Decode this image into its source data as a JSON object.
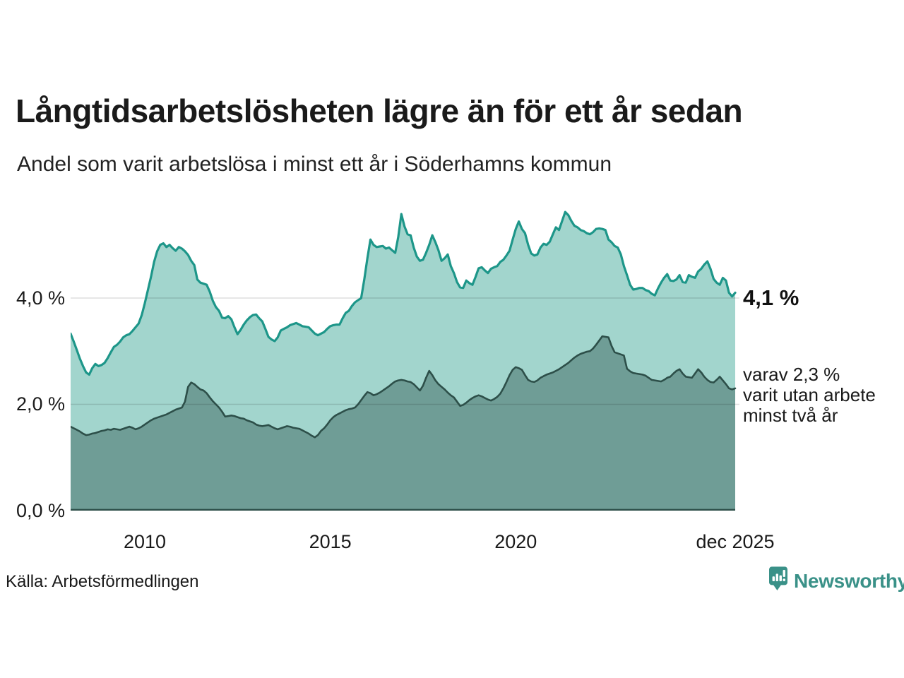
{
  "header": {
    "title": "Långtidsarbetslösheten lägre än för ett år sedan",
    "subtitle": "Andel som varit arbetslösa i minst ett år i Söderhamns kommun"
  },
  "annotations": {
    "series1_end_label": "4,1 %",
    "series2_end_label": "varav 2,3 %\nvarit utan arbete\nminst två år"
  },
  "footer": {
    "source": "Källa: Arbetsförmedlingen",
    "logo_text": "Newsworthy"
  },
  "colors": {
    "series1_line": "#1d9689",
    "series1_fill": "#a2d5cd",
    "series2_line": "#2d4f49",
    "series2_fill": "#6f9d96",
    "gridline": "rgba(0,0,0,0.13)",
    "axis_line": "#2d4f49",
    "logo_teal": "#3a9188",
    "text": "#1a1a1a"
  },
  "chart_data": {
    "type": "area",
    "title": "Långtidsarbetslösheten lägre än för ett år sedan",
    "subtitle": "Andel som varit arbetslösa i minst ett år i Söderhamns kommun",
    "unit": "%",
    "x_start_year": 2008,
    "x_months_per_point": 1,
    "x_end_label_month": "dec 2025",
    "grid": "horizontal",
    "legend_position": "right-annotations",
    "y_axis": {
      "min": 0,
      "max": 5.887,
      "ticks": [
        {
          "label": "4,0 %",
          "value": 4.0
        },
        {
          "label": "2,0 %",
          "value": 2.0
        },
        {
          "label": "0,0 %",
          "value": 0.0
        }
      ]
    },
    "x_axis": {
      "ticks": [
        {
          "label": "2010",
          "year": 2010.0
        },
        {
          "label": "2015",
          "year": 2015.0
        },
        {
          "label": "2020",
          "year": 2020.0
        },
        {
          "label": "dec 2025",
          "year": 2025.917
        }
      ]
    },
    "series": [
      {
        "name": "Andel som varit arbetslösa i minst ett år",
        "end_value": 4.1,
        "end_label": "4,1 %",
        "values": [
          3.33,
          3.18,
          3.02,
          2.86,
          2.72,
          2.6,
          2.56,
          2.68,
          2.76,
          2.72,
          2.74,
          2.78,
          2.87,
          2.98,
          3.08,
          3.12,
          3.18,
          3.26,
          3.3,
          3.32,
          3.38,
          3.45,
          3.52,
          3.68,
          3.9,
          4.15,
          4.4,
          4.68,
          4.88,
          5.0,
          5.03,
          4.96,
          5.0,
          4.94,
          4.89,
          4.96,
          4.93,
          4.88,
          4.81,
          4.7,
          4.62,
          4.35,
          4.29,
          4.27,
          4.25,
          4.12,
          3.95,
          3.83,
          3.76,
          3.63,
          3.62,
          3.66,
          3.6,
          3.45,
          3.32,
          3.4,
          3.5,
          3.58,
          3.64,
          3.68,
          3.69,
          3.62,
          3.56,
          3.42,
          3.27,
          3.22,
          3.19,
          3.26,
          3.39,
          3.42,
          3.45,
          3.49,
          3.51,
          3.53,
          3.5,
          3.47,
          3.46,
          3.45,
          3.39,
          3.33,
          3.3,
          3.33,
          3.36,
          3.42,
          3.47,
          3.49,
          3.5,
          3.5,
          3.62,
          3.72,
          3.76,
          3.85,
          3.92,
          3.96,
          4.0,
          4.35,
          4.75,
          5.1,
          5.0,
          4.96,
          4.97,
          4.98,
          4.93,
          4.95,
          4.9,
          4.85,
          5.15,
          5.58,
          5.35,
          5.2,
          5.18,
          4.95,
          4.78,
          4.7,
          4.72,
          4.85,
          5.0,
          5.18,
          5.05,
          4.9,
          4.7,
          4.75,
          4.82,
          4.6,
          4.47,
          4.3,
          4.2,
          4.19,
          4.33,
          4.28,
          4.25,
          4.4,
          4.56,
          4.58,
          4.52,
          4.47,
          4.55,
          4.58,
          4.6,
          4.68,
          4.72,
          4.8,
          4.89,
          5.1,
          5.3,
          5.44,
          5.3,
          5.22,
          5.0,
          4.84,
          4.8,
          4.82,
          4.95,
          5.02,
          5.0,
          5.06,
          5.2,
          5.33,
          5.28,
          5.45,
          5.62,
          5.56,
          5.45,
          5.36,
          5.33,
          5.28,
          5.26,
          5.22,
          5.2,
          5.24,
          5.3,
          5.31,
          5.3,
          5.28,
          5.1,
          5.05,
          4.98,
          4.95,
          4.82,
          4.6,
          4.43,
          4.25,
          4.16,
          4.17,
          4.19,
          4.19,
          4.15,
          4.13,
          4.08,
          4.05,
          4.18,
          4.29,
          4.38,
          4.45,
          4.33,
          4.32,
          4.35,
          4.43,
          4.3,
          4.29,
          4.43,
          4.4,
          4.38,
          4.5,
          4.55,
          4.63,
          4.69,
          4.55,
          4.36,
          4.29,
          4.25,
          4.38,
          4.33,
          4.1,
          4.03,
          4.1
        ]
      },
      {
        "name": "varav utan arbete minst två år",
        "end_value": 2.3,
        "end_label": "varav 2,3 % varit utan arbete minst två år",
        "values": [
          1.58,
          1.55,
          1.52,
          1.49,
          1.45,
          1.42,
          1.43,
          1.45,
          1.46,
          1.48,
          1.5,
          1.51,
          1.53,
          1.52,
          1.54,
          1.53,
          1.52,
          1.54,
          1.56,
          1.58,
          1.56,
          1.53,
          1.55,
          1.58,
          1.62,
          1.66,
          1.7,
          1.73,
          1.75,
          1.77,
          1.79,
          1.81,
          1.84,
          1.87,
          1.9,
          1.92,
          1.94,
          2.05,
          2.33,
          2.41,
          2.38,
          2.33,
          2.28,
          2.26,
          2.21,
          2.13,
          2.06,
          2.0,
          1.94,
          1.86,
          1.77,
          1.78,
          1.79,
          1.78,
          1.76,
          1.74,
          1.73,
          1.7,
          1.68,
          1.66,
          1.62,
          1.6,
          1.59,
          1.6,
          1.61,
          1.58,
          1.55,
          1.53,
          1.55,
          1.57,
          1.59,
          1.58,
          1.56,
          1.55,
          1.54,
          1.51,
          1.48,
          1.45,
          1.41,
          1.38,
          1.42,
          1.5,
          1.55,
          1.62,
          1.7,
          1.76,
          1.8,
          1.83,
          1.86,
          1.89,
          1.91,
          1.92,
          1.94,
          2.0,
          2.08,
          2.16,
          2.23,
          2.21,
          2.17,
          2.19,
          2.22,
          2.26,
          2.3,
          2.34,
          2.39,
          2.43,
          2.45,
          2.46,
          2.45,
          2.43,
          2.42,
          2.38,
          2.32,
          2.26,
          2.35,
          2.5,
          2.63,
          2.55,
          2.45,
          2.38,
          2.33,
          2.28,
          2.22,
          2.17,
          2.13,
          2.05,
          1.97,
          1.99,
          2.03,
          2.08,
          2.12,
          2.15,
          2.17,
          2.15,
          2.12,
          2.09,
          2.07,
          2.1,
          2.14,
          2.2,
          2.3,
          2.42,
          2.55,
          2.65,
          2.7,
          2.68,
          2.65,
          2.55,
          2.46,
          2.43,
          2.42,
          2.45,
          2.5,
          2.53,
          2.56,
          2.58,
          2.6,
          2.63,
          2.66,
          2.7,
          2.74,
          2.78,
          2.83,
          2.88,
          2.92,
          2.95,
          2.97,
          2.99,
          3.0,
          3.05,
          3.12,
          3.2,
          3.28,
          3.27,
          3.26,
          3.1,
          2.98,
          2.96,
          2.94,
          2.92,
          2.67,
          2.62,
          2.59,
          2.58,
          2.57,
          2.56,
          2.54,
          2.5,
          2.46,
          2.45,
          2.44,
          2.43,
          2.46,
          2.5,
          2.52,
          2.58,
          2.63,
          2.66,
          2.58,
          2.52,
          2.51,
          2.5,
          2.58,
          2.66,
          2.6,
          2.52,
          2.46,
          2.42,
          2.41,
          2.46,
          2.52,
          2.45,
          2.38,
          2.3,
          2.28,
          2.3
        ]
      }
    ]
  }
}
